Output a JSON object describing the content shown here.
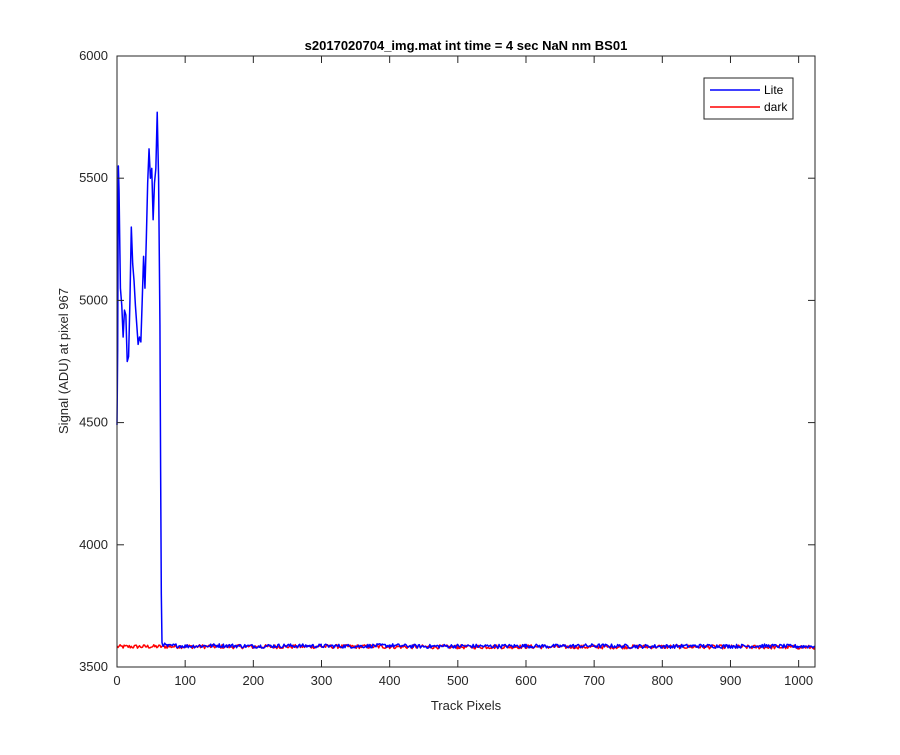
{
  "chart_data": {
    "type": "line",
    "title": "s2017020704_img.mat int time = 4 sec  NaN nm BS01",
    "xlabel": "Track Pixels",
    "ylabel": "Signal (ADU) at pixel 967",
    "xlim": [
      0,
      1024
    ],
    "ylim": [
      3500,
      6000
    ],
    "xticks": [
      0,
      100,
      200,
      300,
      400,
      500,
      600,
      700,
      800,
      900,
      1000
    ],
    "yticks": [
      3500,
      4000,
      4500,
      5000,
      5500,
      6000
    ],
    "legend_position": "top-right",
    "grid": false,
    "series": [
      {
        "name": "Lite",
        "color": "#0000ff",
        "note_baseline": 3585,
        "noise_amplitude": 8,
        "x": [
          0,
          1,
          2,
          3,
          5,
          7,
          9,
          11,
          13,
          15,
          17,
          19,
          21,
          23,
          25,
          27,
          29,
          31,
          33,
          35,
          37,
          39,
          41,
          43,
          45,
          47,
          49,
          51,
          53,
          55,
          57,
          59,
          61,
          63,
          64,
          65,
          66,
          67,
          68,
          70,
          75,
          85,
          100,
          150,
          200,
          250,
          300,
          350,
          400,
          450,
          500,
          550,
          600,
          650,
          700,
          750,
          800,
          850,
          900,
          950,
          1000,
          1024
        ],
        "y": [
          4490,
          4800,
          5550,
          5450,
          5050,
          4980,
          4850,
          4960,
          4940,
          4750,
          4770,
          5000,
          5300,
          5150,
          5080,
          4980,
          4900,
          4820,
          4850,
          4830,
          5000,
          5180,
          5050,
          5250,
          5480,
          5620,
          5500,
          5540,
          5330,
          5480,
          5540,
          5770,
          5500,
          4900,
          4300,
          3800,
          3600,
          3590,
          3585,
          3590,
          3585,
          3588,
          3585,
          3588,
          3585,
          3587,
          3586,
          3585,
          3588,
          3584,
          3586,
          3585,
          3586,
          3585,
          3587,
          3585,
          3584,
          3586,
          3585,
          3586,
          3584,
          3585
        ]
      },
      {
        "name": "dark",
        "color": "#ff0000",
        "x": [
          0,
          100,
          200,
          300,
          400,
          500,
          600,
          700,
          800,
          900,
          1000,
          1024
        ],
        "y": [
          3583,
          3584,
          3583,
          3584,
          3583,
          3582,
          3583,
          3582,
          3583,
          3582,
          3581,
          3581
        ]
      }
    ]
  }
}
